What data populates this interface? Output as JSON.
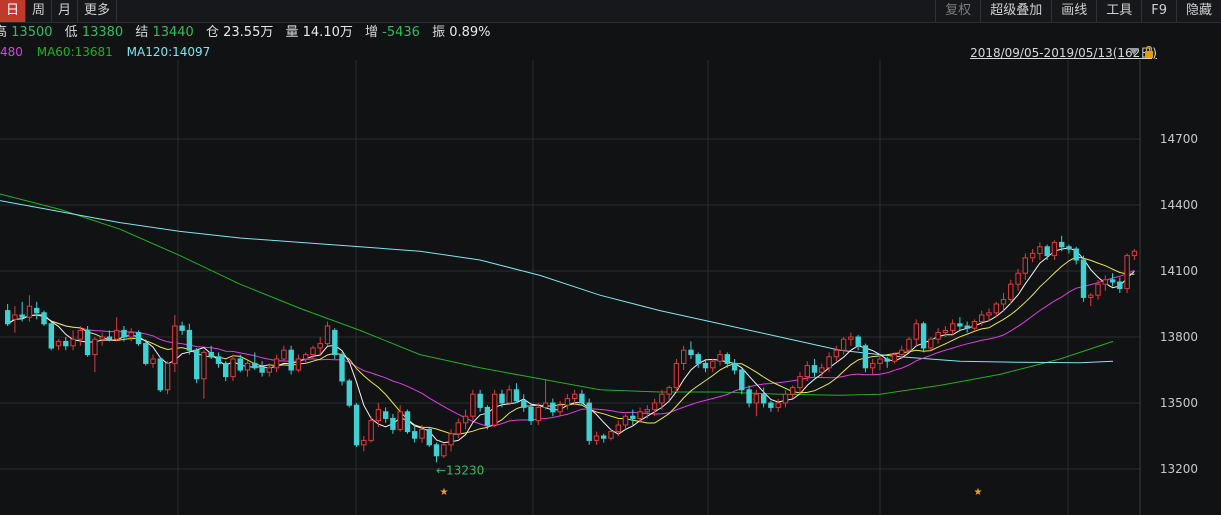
{
  "toolbar": {
    "left": [
      "日",
      "周",
      "月",
      "更多"
    ],
    "right": [
      "复权",
      "超级叠加",
      "画线",
      "工具",
      "F9",
      "隐藏"
    ]
  },
  "info": {
    "high_label": "高",
    "high": "13500",
    "low_label": "低",
    "low": "13380",
    "close_label": "结",
    "close": "13440",
    "oi_label": "仓",
    "oi": "23.55万",
    "vol_label": "量",
    "vol": "14.10万",
    "chg_label": "增",
    "chg": "-5436",
    "amp_label": "振",
    "amp": "0.89%"
  },
  "ma_legend": {
    "ma_partial": "480",
    "ma60": "MA60:13681",
    "ma120": "MA120:14097"
  },
  "range": "2018/09/05-2019/05/13(162日)",
  "colors": {
    "up": "#e03b3b",
    "down": "#3fd1d3",
    "ma5": "#f2f2f2",
    "ma10": "#e8e84a",
    "ma20": "#e03ee0",
    "ma60": "#22b022",
    "ma120": "#7fe6f0",
    "grid": "#2a2d31",
    "axis_text": "#c9c9c9",
    "annotation": "#2ebd5e",
    "marker": "#f0a020"
  },
  "chart_data": {
    "type": "candlestick",
    "y_ticks": [
      14700,
      14400,
      14100,
      13800,
      13500,
      13200
    ],
    "ylim": [
      13000,
      14900
    ],
    "annotation": {
      "text": "←13230",
      "value": 13230
    },
    "markers": [
      "★",
      "★"
    ],
    "candles": [
      [
        13920,
        13950,
        13850,
        13860
      ],
      [
        13880,
        13940,
        13820,
        13900
      ],
      [
        13900,
        13960,
        13870,
        13890
      ],
      [
        13890,
        13990,
        13870,
        13940
      ],
      [
        13930,
        13960,
        13880,
        13910
      ],
      [
        13910,
        13920,
        13850,
        13860
      ],
      [
        13860,
        13870,
        13740,
        13750
      ],
      [
        13760,
        13790,
        13740,
        13780
      ],
      [
        13780,
        13800,
        13740,
        13760
      ],
      [
        13760,
        13830,
        13740,
        13790
      ],
      [
        13790,
        13850,
        13760,
        13830
      ],
      [
        13830,
        13850,
        13710,
        13720
      ],
      [
        13720,
        13800,
        13640,
        13790
      ],
      [
        13790,
        13820,
        13760,
        13800
      ],
      [
        13800,
        13830,
        13780,
        13790
      ],
      [
        13790,
        13890,
        13780,
        13830
      ],
      [
        13830,
        13850,
        13780,
        13800
      ],
      [
        13800,
        13840,
        13780,
        13820
      ],
      [
        13820,
        13830,
        13760,
        13770
      ],
      [
        13770,
        13790,
        13670,
        13680
      ],
      [
        13680,
        13720,
        13660,
        13700
      ],
      [
        13700,
        13710,
        13550,
        13560
      ],
      [
        13560,
        13690,
        13540,
        13680
      ],
      [
        13680,
        13900,
        13640,
        13850
      ],
      [
        13850,
        13870,
        13810,
        13830
      ],
      [
        13830,
        13860,
        13720,
        13740
      ],
      [
        13740,
        13750,
        13590,
        13610
      ],
      [
        13610,
        13740,
        13520,
        13730
      ],
      [
        13730,
        13760,
        13700,
        13710
      ],
      [
        13710,
        13730,
        13660,
        13680
      ],
      [
        13680,
        13690,
        13600,
        13620
      ],
      [
        13620,
        13720,
        13600,
        13700
      ],
      [
        13700,
        13720,
        13640,
        13650
      ],
      [
        13650,
        13690,
        13620,
        13680
      ],
      [
        13680,
        13730,
        13650,
        13660
      ],
      [
        13660,
        13690,
        13620,
        13640
      ],
      [
        13640,
        13680,
        13620,
        13660
      ],
      [
        13660,
        13720,
        13640,
        13700
      ],
      [
        13700,
        13760,
        13690,
        13740
      ],
      [
        13740,
        13760,
        13630,
        13650
      ],
      [
        13650,
        13720,
        13640,
        13700
      ],
      [
        13700,
        13730,
        13680,
        13720
      ],
      [
        13720,
        13760,
        13700,
        13750
      ],
      [
        13750,
        13800,
        13720,
        13770
      ],
      [
        13770,
        13870,
        13760,
        13850
      ],
      [
        13830,
        13840,
        13700,
        13720
      ],
      [
        13720,
        13730,
        13580,
        13600
      ],
      [
        13600,
        13610,
        13480,
        13490
      ],
      [
        13490,
        13500,
        13300,
        13310
      ],
      [
        13310,
        13350,
        13280,
        13330
      ],
      [
        13330,
        13440,
        13320,
        13420
      ],
      [
        13420,
        13500,
        13390,
        13470
      ],
      [
        13460,
        13480,
        13410,
        13430
      ],
      [
        13430,
        13450,
        13360,
        13380
      ],
      [
        13380,
        13490,
        13370,
        13460
      ],
      [
        13460,
        13470,
        13360,
        13370
      ],
      [
        13370,
        13400,
        13320,
        13340
      ],
      [
        13340,
        13400,
        13320,
        13380
      ],
      [
        13380,
        13390,
        13300,
        13310
      ],
      [
        13310,
        13320,
        13230,
        13260
      ],
      [
        13260,
        13320,
        13250,
        13310
      ],
      [
        13310,
        13380,
        13280,
        13360
      ],
      [
        13360,
        13430,
        13340,
        13410
      ],
      [
        13410,
        13470,
        13380,
        13440
      ],
      [
        13440,
        13560,
        13420,
        13540
      ],
      [
        13540,
        13560,
        13460,
        13480
      ],
      [
        13480,
        13490,
        13380,
        13400
      ],
      [
        13400,
        13560,
        13390,
        13540
      ],
      [
        13540,
        13560,
        13480,
        13500
      ],
      [
        13500,
        13580,
        13490,
        13560
      ],
      [
        13560,
        13590,
        13500,
        13510
      ],
      [
        13510,
        13540,
        13460,
        13480
      ],
      [
        13480,
        13500,
        13400,
        13420
      ],
      [
        13420,
        13500,
        13400,
        13480
      ],
      [
        13480,
        13610,
        13470,
        13500
      ],
      [
        13500,
        13520,
        13440,
        13460
      ],
      [
        13460,
        13510,
        13440,
        13490
      ],
      [
        13490,
        13540,
        13470,
        13520
      ],
      [
        13520,
        13560,
        13490,
        13540
      ],
      [
        13540,
        13560,
        13490,
        13500
      ],
      [
        13500,
        13520,
        13310,
        13330
      ],
      [
        13330,
        13370,
        13310,
        13350
      ],
      [
        13350,
        13360,
        13320,
        13340
      ],
      [
        13340,
        13380,
        13330,
        13370
      ],
      [
        13370,
        13420,
        13350,
        13400
      ],
      [
        13400,
        13450,
        13380,
        13440
      ],
      [
        13440,
        13470,
        13400,
        13430
      ],
      [
        13430,
        13480,
        13410,
        13460
      ],
      [
        13460,
        13490,
        13430,
        13470
      ],
      [
        13470,
        13520,
        13440,
        13500
      ],
      [
        13500,
        13560,
        13470,
        13540
      ],
      [
        13540,
        13580,
        13510,
        13570
      ],
      [
        13570,
        13700,
        13550,
        13680
      ],
      [
        13680,
        13760,
        13650,
        13740
      ],
      [
        13740,
        13780,
        13700,
        13720
      ],
      [
        13720,
        13730,
        13660,
        13680
      ],
      [
        13680,
        13700,
        13640,
        13660
      ],
      [
        13660,
        13700,
        13640,
        13690
      ],
      [
        13690,
        13740,
        13670,
        13720
      ],
      [
        13720,
        13730,
        13660,
        13680
      ],
      [
        13680,
        13700,
        13630,
        13650
      ],
      [
        13650,
        13660,
        13540,
        13560
      ],
      [
        13560,
        13580,
        13480,
        13500
      ],
      [
        13500,
        13560,
        13440,
        13540
      ],
      [
        13540,
        13570,
        13480,
        13500
      ],
      [
        13500,
        13510,
        13460,
        13480
      ],
      [
        13480,
        13520,
        13460,
        13500
      ],
      [
        13500,
        13560,
        13480,
        13540
      ],
      [
        13540,
        13580,
        13520,
        13570
      ],
      [
        13570,
        13640,
        13540,
        13620
      ],
      [
        13620,
        13690,
        13600,
        13670
      ],
      [
        13670,
        13700,
        13620,
        13640
      ],
      [
        13640,
        13680,
        13620,
        13660
      ],
      [
        13660,
        13730,
        13640,
        13710
      ],
      [
        13710,
        13760,
        13690,
        13740
      ],
      [
        13740,
        13800,
        13720,
        13790
      ],
      [
        13790,
        13820,
        13760,
        13800
      ],
      [
        13800,
        13810,
        13740,
        13760
      ],
      [
        13760,
        13770,
        13640,
        13660
      ],
      [
        13660,
        13700,
        13630,
        13680
      ],
      [
        13680,
        13720,
        13650,
        13700
      ],
      [
        13700,
        13710,
        13660,
        13690
      ],
      [
        13690,
        13730,
        13680,
        13720
      ],
      [
        13720,
        13760,
        13700,
        13740
      ],
      [
        13740,
        13800,
        13730,
        13790
      ],
      [
        13790,
        13880,
        13760,
        13860
      ],
      [
        13860,
        13870,
        13730,
        13750
      ],
      [
        13750,
        13800,
        13740,
        13790
      ],
      [
        13790,
        13840,
        13770,
        13820
      ],
      [
        13820,
        13850,
        13800,
        13830
      ],
      [
        13830,
        13880,
        13810,
        13860
      ],
      [
        13860,
        13890,
        13830,
        13850
      ],
      [
        13850,
        13870,
        13820,
        13840
      ],
      [
        13840,
        13880,
        13830,
        13870
      ],
      [
        13870,
        13920,
        13850,
        13900
      ],
      [
        13900,
        13930,
        13870,
        13910
      ],
      [
        13910,
        13960,
        13890,
        13950
      ],
      [
        13950,
        14000,
        13920,
        13970
      ],
      [
        13970,
        14060,
        13950,
        14040
      ],
      [
        14040,
        14110,
        14010,
        14090
      ],
      [
        14090,
        14180,
        14060,
        14160
      ],
      [
        14160,
        14200,
        14140,
        14180
      ],
      [
        14180,
        14230,
        14150,
        14210
      ],
      [
        14210,
        14220,
        14150,
        14170
      ],
      [
        14170,
        14240,
        14150,
        14230
      ],
      [
        14230,
        14260,
        14190,
        14210
      ],
      [
        14210,
        14220,
        14180,
        14200
      ],
      [
        14200,
        14210,
        14130,
        14150
      ],
      [
        14150,
        14170,
        13960,
        13980
      ],
      [
        13980,
        14000,
        13940,
        13990
      ],
      [
        13990,
        14060,
        13970,
        14040
      ],
      [
        14040,
        14080,
        14010,
        14060
      ],
      [
        14060,
        14090,
        14030,
        14050
      ],
      [
        14050,
        14070,
        14000,
        14020
      ],
      [
        14020,
        14180,
        14000,
        14170
      ],
      [
        14170,
        14200,
        14150,
        14190
      ]
    ]
  }
}
